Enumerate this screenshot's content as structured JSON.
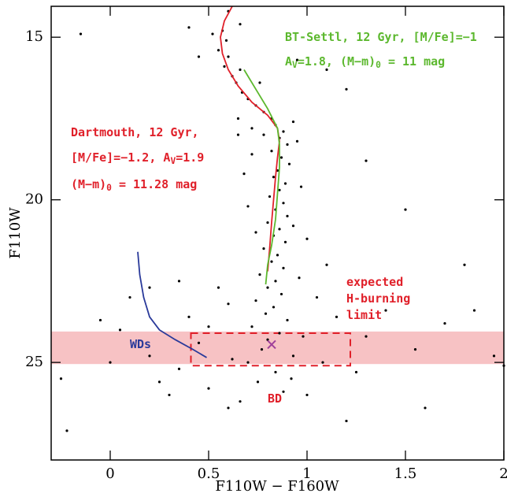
{
  "chart_data": {
    "type": "scatter",
    "x_label": "F110W − F160W",
    "y_label": "F110W",
    "xlim": [
      -0.3,
      2.0
    ],
    "ylim": [
      14.05,
      28
    ],
    "y_inverted": true,
    "xticks": [
      0,
      0.5,
      1,
      1.5,
      2
    ],
    "yticks": [
      15,
      20,
      25
    ],
    "points": {
      "color": "#000000",
      "x": [
        0.6,
        0.57,
        0.59,
        0.55,
        0.6,
        0.58,
        0.62,
        0.64,
        0.67,
        0.7,
        0.74,
        0.78,
        0.82,
        0.84,
        0.88,
        0.86,
        0.9,
        0.82,
        0.87,
        0.91,
        0.85,
        0.83,
        0.89,
        0.86,
        0.81,
        0.88,
        0.84,
        0.9,
        0.8,
        0.86,
        0.83,
        0.89,
        0.78,
        0.85,
        0.82,
        0.88,
        0.76,
        0.84,
        0.8,
        0.87,
        0.74,
        0.83,
        0.79,
        0.9,
        0.72,
        0.86,
        0.8,
        0.77,
        0.93,
        0.7,
        0.84,
        0.75,
        0.88,
        0.66,
        0.65,
        0.68,
        0.72,
        0.7,
        0.74,
        0.95,
        0.97,
        1.0,
        0.93,
        0.96,
        1.05,
        1.1,
        1.15,
        1.3,
        1.4,
        1.55,
        1.7,
        1.85,
        1.95,
        2.0,
        1.6,
        1.2,
        1.0,
        0.6,
        0.5,
        0.45,
        0.4,
        0.35,
        0.3,
        0.25,
        0.2,
        0.1,
        0.05,
        -0.05,
        0.0,
        -0.25,
        -0.22,
        -0.15,
        0.4,
        0.45,
        0.65,
        1.2,
        1.1,
        0.95,
        1.3,
        1.5,
        1.8,
        0.55,
        0.6,
        0.5,
        0.62,
        0.92,
        0.98,
        1.08,
        1.25,
        0.35,
        0.2,
        0.72,
        0.78,
        0.93,
        0.76,
        0.66,
        0.52,
        0.66
      ],
      "y": [
        14.2,
        14.8,
        15.1,
        15.4,
        15.6,
        15.9,
        16.2,
        16.4,
        16.7,
        16.9,
        17.1,
        17.3,
        17.5,
        17.7,
        17.9,
        18.1,
        18.3,
        18.5,
        18.7,
        18.9,
        19.1,
        19.3,
        19.5,
        19.7,
        19.9,
        20.1,
        20.3,
        20.5,
        20.7,
        20.9,
        21.1,
        21.3,
        21.5,
        21.7,
        21.9,
        22.1,
        22.3,
        22.5,
        22.7,
        22.9,
        23.1,
        23.3,
        23.5,
        23.7,
        23.9,
        24.1,
        24.3,
        24.6,
        24.8,
        25.0,
        25.3,
        25.6,
        25.9,
        26.2,
        18.0,
        19.2,
        18.6,
        20.2,
        21.0,
        18.2,
        19.6,
        21.2,
        20.8,
        22.4,
        23.0,
        22.0,
        23.6,
        24.2,
        23.4,
        24.6,
        23.8,
        23.4,
        24.8,
        25.1,
        26.4,
        26.8,
        26.0,
        26.4,
        25.8,
        24.4,
        23.6,
        25.2,
        26.0,
        25.6,
        24.8,
        23.0,
        24.0,
        23.7,
        25.0,
        25.5,
        27.1,
        14.9,
        14.7,
        15.6,
        17.5,
        16.6,
        16.0,
        15.7,
        18.8,
        20.3,
        22.0,
        22.7,
        23.2,
        23.9,
        24.9,
        25.5,
        24.2,
        25.0,
        25.3,
        22.5,
        22.7,
        17.8,
        18.0,
        17.6,
        16.4,
        16.0,
        14.9,
        14.6
      ]
    },
    "lines": [
      {
        "color": "#e0202a",
        "x": [
          0.62,
          0.58,
          0.56,
          0.57,
          0.6,
          0.65,
          0.72,
          0.8,
          0.85,
          0.86,
          0.85,
          0.84,
          0.83,
          0.82,
          0.81,
          0.8
        ],
        "y": [
          14.05,
          14.5,
          15.0,
          15.5,
          16.0,
          16.5,
          17.0,
          17.4,
          17.8,
          18.2,
          18.7,
          19.3,
          20.0,
          20.7,
          21.5,
          22.2
        ]
      },
      {
        "color": "#5cb82e",
        "x": [
          0.68,
          0.74,
          0.8,
          0.85,
          0.86,
          0.86,
          0.85,
          0.84,
          0.82,
          0.8,
          0.79
        ],
        "y": [
          16.0,
          16.6,
          17.2,
          17.8,
          18.3,
          19.0,
          19.8,
          20.6,
          21.4,
          22.0,
          22.6
        ]
      },
      {
        "color": "#2a3a9a",
        "x": [
          0.14,
          0.15,
          0.17,
          0.2,
          0.25,
          0.33,
          0.42,
          0.49
        ],
        "y": [
          21.6,
          22.3,
          23.0,
          23.6,
          24.0,
          24.3,
          24.6,
          24.85
        ]
      }
    ],
    "band": {
      "color": "#f7c2c4",
      "y": [
        24.05,
        25.05
      ]
    },
    "box": {
      "color": "#e0202a",
      "x": [
        0.41,
        1.22
      ],
      "y": [
        24.1,
        25.1
      ]
    },
    "marker": {
      "color": "#a0409a",
      "x": 0.82,
      "y": 24.45
    },
    "annotations": [
      {
        "color": "#5cb82e",
        "parts": [
          "BT-Settl, 12 Gyr, [M/Fe]=−1"
        ]
      },
      {
        "color": "#5cb82e",
        "parts": [
          "A",
          "V",
          "=1.8, (M−m)",
          "0",
          " = 11 mag"
        ]
      },
      {
        "color": "#e0202a",
        "parts": [
          "Dartmouth, 12 Gyr,"
        ]
      },
      {
        "color": "#e0202a",
        "parts": [
          "[M/Fe]=−1.2, A",
          "V",
          "=1.9"
        ]
      },
      {
        "color": "#e0202a",
        "parts": [
          "(M−m)",
          "0",
          " = 11.28 mag"
        ]
      },
      {
        "color": "#e0202a",
        "parts": [
          "expected"
        ]
      },
      {
        "color": "#e0202a",
        "parts": [
          "H-burning"
        ]
      },
      {
        "color": "#e0202a",
        "parts": [
          "limit"
        ]
      },
      {
        "color": "#2a3a9a",
        "parts": [
          "WDs"
        ]
      },
      {
        "color": "#e0202a",
        "parts": [
          "BD"
        ]
      }
    ]
  }
}
